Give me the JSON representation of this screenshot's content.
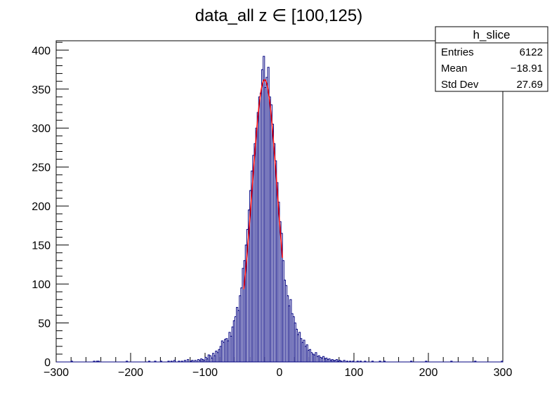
{
  "chart_data": {
    "type": "bar",
    "title": "data_all z ∈ [100,125)",
    "xlabel": "",
    "ylabel": "",
    "xlim": [
      -300,
      300
    ],
    "ylim": [
      0,
      412
    ],
    "x_ticks": [
      -300,
      -200,
      -100,
      0,
      100,
      200,
      300
    ],
    "x_tick_labels": [
      "−300",
      "−200",
      "−100",
      "0",
      "100",
      "200",
      "300"
    ],
    "y_ticks": [
      0,
      50,
      100,
      150,
      200,
      250,
      300,
      350,
      400
    ],
    "y_tick_labels": [
      "0",
      "50",
      "100",
      "150",
      "200",
      "250",
      "300",
      "350",
      "400"
    ],
    "bin_width": 2,
    "histogram_color": "#000080",
    "fit_color": "#ff0000",
    "series": [
      {
        "name": "h_slice",
        "bins": [
          [
            -280,
            1
          ],
          [
            -250,
            1
          ],
          [
            -246,
            1
          ],
          [
            -244,
            1
          ],
          [
            -206,
            1
          ],
          [
            -176,
            1
          ],
          [
            -168,
            1
          ],
          [
            -160,
            1
          ],
          [
            -150,
            1
          ],
          [
            -146,
            1
          ],
          [
            -142,
            2
          ],
          [
            -136,
            1
          ],
          [
            -132,
            1
          ],
          [
            -128,
            2
          ],
          [
            -124,
            3
          ],
          [
            -120,
            1
          ],
          [
            -118,
            2
          ],
          [
            -114,
            2
          ],
          [
            -110,
            3
          ],
          [
            -108,
            2
          ],
          [
            -106,
            4
          ],
          [
            -104,
            3
          ],
          [
            -102,
            2
          ],
          [
            -100,
            6
          ],
          [
            -98,
            4
          ],
          [
            -96,
            9
          ],
          [
            -94,
            8
          ],
          [
            -92,
            5
          ],
          [
            -90,
            11
          ],
          [
            -88,
            8
          ],
          [
            -86,
            14
          ],
          [
            -84,
            12
          ],
          [
            -82,
            16
          ],
          [
            -80,
            20
          ],
          [
            -78,
            27
          ],
          [
            -76,
            25
          ],
          [
            -74,
            29
          ],
          [
            -72,
            30
          ],
          [
            -70,
            27
          ],
          [
            -68,
            38
          ],
          [
            -66,
            33
          ],
          [
            -64,
            45
          ],
          [
            -62,
            53
          ],
          [
            -60,
            58
          ],
          [
            -58,
            70
          ],
          [
            -56,
            66
          ],
          [
            -54,
            85
          ],
          [
            -52,
            95
          ],
          [
            -50,
            120
          ],
          [
            -48,
            130
          ],
          [
            -46,
            150
          ],
          [
            -44,
            170
          ],
          [
            -42,
            195
          ],
          [
            -40,
            220
          ],
          [
            -38,
            245
          ],
          [
            -36,
            265
          ],
          [
            -34,
            280
          ],
          [
            -32,
            300
          ],
          [
            -30,
            320
          ],
          [
            -28,
            340
          ],
          [
            -26,
            345
          ],
          [
            -24,
            375
          ],
          [
            -22,
            392
          ],
          [
            -20,
            352
          ],
          [
            -18,
            365
          ],
          [
            -16,
            378
          ],
          [
            -14,
            340
          ],
          [
            -12,
            330
          ],
          [
            -10,
            305
          ],
          [
            -8,
            280
          ],
          [
            -6,
            258
          ],
          [
            -4,
            230
          ],
          [
            -2,
            205
          ],
          [
            0,
            180
          ],
          [
            2,
            165
          ],
          [
            4,
            130
          ],
          [
            6,
            105
          ],
          [
            8,
            98
          ],
          [
            10,
            85
          ],
          [
            12,
            72
          ],
          [
            14,
            80
          ],
          [
            16,
            62
          ],
          [
            18,
            58
          ],
          [
            20,
            50
          ],
          [
            22,
            42
          ],
          [
            24,
            35
          ],
          [
            26,
            38
          ],
          [
            28,
            30
          ],
          [
            30,
            25
          ],
          [
            32,
            28
          ],
          [
            34,
            20
          ],
          [
            36,
            22
          ],
          [
            38,
            15
          ],
          [
            40,
            16
          ],
          [
            42,
            12
          ],
          [
            44,
            10
          ],
          [
            46,
            9
          ],
          [
            48,
            12
          ],
          [
            50,
            7
          ],
          [
            52,
            8
          ],
          [
            54,
            6
          ],
          [
            56,
            5
          ],
          [
            58,
            7
          ],
          [
            60,
            4
          ],
          [
            62,
            5
          ],
          [
            64,
            3
          ],
          [
            66,
            4
          ],
          [
            68,
            2
          ],
          [
            70,
            3
          ],
          [
            72,
            2
          ],
          [
            74,
            2
          ],
          [
            76,
            3
          ],
          [
            78,
            1
          ],
          [
            80,
            2
          ],
          [
            82,
            1
          ],
          [
            86,
            2
          ],
          [
            90,
            1
          ],
          [
            94,
            1
          ],
          [
            98,
            1
          ],
          [
            104,
            1
          ],
          [
            108,
            1
          ],
          [
            114,
            1
          ],
          [
            124,
            1
          ],
          [
            134,
            1
          ],
          [
            140,
            1
          ],
          [
            176,
            1
          ],
          [
            196,
            1
          ],
          [
            230,
            1
          ],
          [
            262,
            1
          ],
          [
            298,
            1
          ]
        ]
      }
    ],
    "fit": {
      "type": "gaussian",
      "x_range": [
        -48,
        4
      ],
      "constant": 362,
      "mean": -20,
      "sigma": 17
    },
    "stats_box": {
      "title": "h_slice",
      "rows": [
        {
          "label": "Entries",
          "value": "6122"
        },
        {
          "label": "Mean",
          "value": "−18.91"
        },
        {
          "label": "Std Dev",
          "value": "27.69"
        }
      ]
    },
    "grid": false,
    "legend": "top-right"
  }
}
